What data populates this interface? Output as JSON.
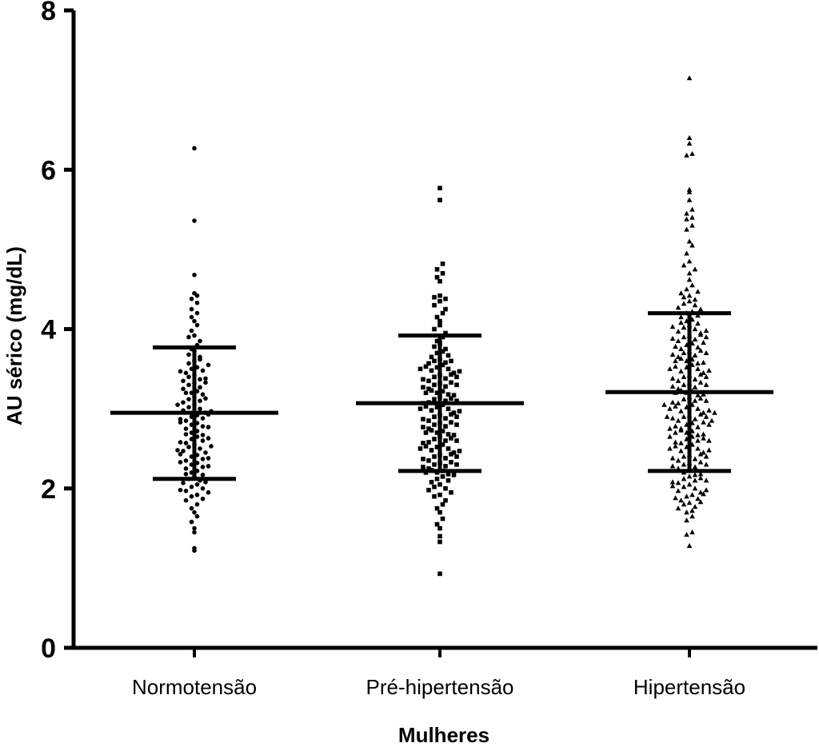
{
  "chart_data": {
    "type": "scatter",
    "title": "",
    "xlabel": "Mulheres",
    "ylabel": "AU sérico (mg/dL)",
    "ylim": [
      0,
      8
    ],
    "yticks": [
      0,
      2,
      4,
      6,
      8
    ],
    "grid": false,
    "categories": [
      "Normotensão",
      "Pré-hipertensão",
      "Hipertensão"
    ],
    "groups": [
      {
        "category": "Normotensão",
        "marker": "circle",
        "mean": 2.95,
        "sd_low": 2.12,
        "sd_high": 3.77,
        "values": [
          6.27,
          5.36,
          4.68,
          4.45,
          4.42,
          4.38,
          4.33,
          4.25,
          4.2,
          4.15,
          4.1,
          4.05,
          3.98,
          3.92,
          3.9,
          3.85,
          3.8,
          3.75,
          3.72,
          3.68,
          3.65,
          3.6,
          3.57,
          3.52,
          3.5,
          3.48,
          3.45,
          3.42,
          3.4,
          3.37,
          3.35,
          3.32,
          3.3,
          3.27,
          3.25,
          3.22,
          3.2,
          3.18,
          3.15,
          3.12,
          3.1,
          3.08,
          3.05,
          3.02,
          3.0,
          2.98,
          2.95,
          2.92,
          2.9,
          2.88,
          2.85,
          2.82,
          2.8,
          2.78,
          2.75,
          2.72,
          2.7,
          2.67,
          2.65,
          2.62,
          2.6,
          2.57,
          2.55,
          2.52,
          2.5,
          2.47,
          2.45,
          2.42,
          2.4,
          2.37,
          2.35,
          2.32,
          2.3,
          2.27,
          2.25,
          2.22,
          2.2,
          2.17,
          2.15,
          2.12,
          2.1,
          2.07,
          2.05,
          2.02,
          2.0,
          1.97,
          1.95,
          1.92,
          1.9,
          1.87,
          1.85,
          1.8,
          1.75,
          1.7,
          1.65,
          1.58,
          1.5,
          1.45,
          1.25,
          1.22,
          3.55,
          3.47,
          3.33,
          3.2,
          3.05,
          2.93,
          2.87,
          2.77,
          2.63,
          2.58,
          2.48,
          2.38,
          2.28,
          2.18,
          2.08,
          1.98,
          3.62,
          3.38,
          3.13,
          2.97,
          2.83,
          2.68,
          2.53,
          2.43,
          2.33
        ]
      },
      {
        "category": "Pré-hipertensão",
        "marker": "square",
        "mean": 3.07,
        "sd_low": 2.22,
        "sd_high": 3.92,
        "values": [
          5.77,
          5.62,
          4.82,
          4.75,
          4.7,
          4.65,
          4.6,
          4.42,
          4.4,
          4.38,
          4.35,
          4.3,
          4.25,
          4.2,
          4.15,
          4.1,
          4.05,
          4.0,
          3.95,
          3.9,
          3.85,
          3.82,
          3.78,
          3.75,
          3.72,
          3.7,
          3.67,
          3.65,
          3.62,
          3.6,
          3.58,
          3.55,
          3.52,
          3.5,
          3.48,
          3.45,
          3.42,
          3.4,
          3.38,
          3.35,
          3.32,
          3.3,
          3.28,
          3.25,
          3.22,
          3.2,
          3.18,
          3.15,
          3.12,
          3.1,
          3.08,
          3.05,
          3.02,
          3.0,
          2.98,
          2.95,
          2.92,
          2.9,
          2.88,
          2.85,
          2.82,
          2.8,
          2.78,
          2.75,
          2.72,
          2.7,
          2.68,
          2.65,
          2.62,
          2.6,
          2.58,
          2.55,
          2.52,
          2.5,
          2.48,
          2.45,
          2.42,
          2.4,
          2.38,
          2.35,
          2.32,
          2.3,
          2.28,
          2.25,
          2.22,
          2.2,
          2.18,
          2.15,
          2.12,
          2.1,
          2.08,
          2.05,
          2.02,
          2.0,
          1.98,
          1.95,
          1.92,
          1.9,
          1.85,
          1.8,
          1.75,
          1.7,
          1.62,
          1.55,
          1.5,
          1.4,
          1.33,
          0.93,
          3.57,
          3.53,
          3.47,
          3.43,
          3.37,
          3.33,
          3.27,
          3.23,
          3.17,
          3.13,
          3.07,
          3.03,
          2.97,
          2.93,
          2.87,
          2.83,
          2.77,
          2.73,
          2.67,
          2.63,
          2.57,
          2.53,
          2.47,
          2.43,
          2.37,
          2.33,
          2.27,
          2.23,
          2.17,
          3.6,
          3.5,
          3.4,
          3.3,
          3.2,
          3.1,
          3.0,
          2.9,
          2.8,
          2.7,
          2.6,
          2.5,
          2.4,
          2.3,
          2.2
        ]
      },
      {
        "category": "Hipertensão",
        "marker": "triangle",
        "mean": 3.21,
        "sd_low": 2.22,
        "sd_high": 4.2,
        "values": [
          7.15,
          6.4,
          6.33,
          6.2,
          6.18,
          5.75,
          5.72,
          5.62,
          5.5,
          5.45,
          5.4,
          5.38,
          5.3,
          5.25,
          5.1,
          5.05,
          4.95,
          4.85,
          4.8,
          4.75,
          4.7,
          4.62,
          4.55,
          4.5,
          4.47,
          4.45,
          4.42,
          4.4,
          4.37,
          4.35,
          4.32,
          4.3,
          4.27,
          4.25,
          4.22,
          4.2,
          4.17,
          4.15,
          4.12,
          4.1,
          4.07,
          4.05,
          4.02,
          4.0,
          3.97,
          3.95,
          3.92,
          3.9,
          3.87,
          3.85,
          3.82,
          3.8,
          3.77,
          3.75,
          3.72,
          3.7,
          3.67,
          3.65,
          3.62,
          3.6,
          3.57,
          3.55,
          3.52,
          3.5,
          3.47,
          3.45,
          3.42,
          3.4,
          3.37,
          3.35,
          3.32,
          3.3,
          3.27,
          3.25,
          3.22,
          3.2,
          3.17,
          3.15,
          3.12,
          3.1,
          3.07,
          3.05,
          3.02,
          3.0,
          2.97,
          2.95,
          2.92,
          2.9,
          2.87,
          2.85,
          2.82,
          2.8,
          2.77,
          2.75,
          2.72,
          2.7,
          2.67,
          2.65,
          2.62,
          2.6,
          2.57,
          2.55,
          2.52,
          2.5,
          2.47,
          2.45,
          2.42,
          2.4,
          2.37,
          2.35,
          2.32,
          2.3,
          2.27,
          2.25,
          2.22,
          2.2,
          2.17,
          2.15,
          2.12,
          2.1,
          2.07,
          2.05,
          2.02,
          2.0,
          1.97,
          1.95,
          1.92,
          1.9,
          1.87,
          1.85,
          1.82,
          1.8,
          1.77,
          1.75,
          1.72,
          1.7,
          1.65,
          1.6,
          1.45,
          1.42,
          1.28,
          4.08,
          4.03,
          3.98,
          3.93,
          3.88,
          3.83,
          3.78,
          3.73,
          3.68,
          3.63,
          3.58,
          3.53,
          3.48,
          3.43,
          3.38,
          3.33,
          3.28,
          3.23,
          3.18,
          3.13,
          3.08,
          3.03,
          2.98,
          2.93,
          2.88,
          2.83,
          2.78,
          2.73,
          2.68,
          2.63,
          2.58,
          2.53,
          2.48,
          2.43,
          2.38,
          2.33,
          2.28,
          2.23,
          2.18,
          2.13,
          2.08,
          2.03,
          1.98,
          1.93,
          1.88,
          1.83,
          3.9,
          3.7,
          3.5,
          3.3,
          3.1,
          2.9,
          2.7,
          2.5,
          2.3,
          2.1,
          3.6,
          3.4,
          3.2,
          3.0,
          2.8,
          2.6,
          2.4,
          2.9,
          2.85,
          2.95,
          3.05,
          2.75,
          2.65
        ]
      }
    ]
  }
}
